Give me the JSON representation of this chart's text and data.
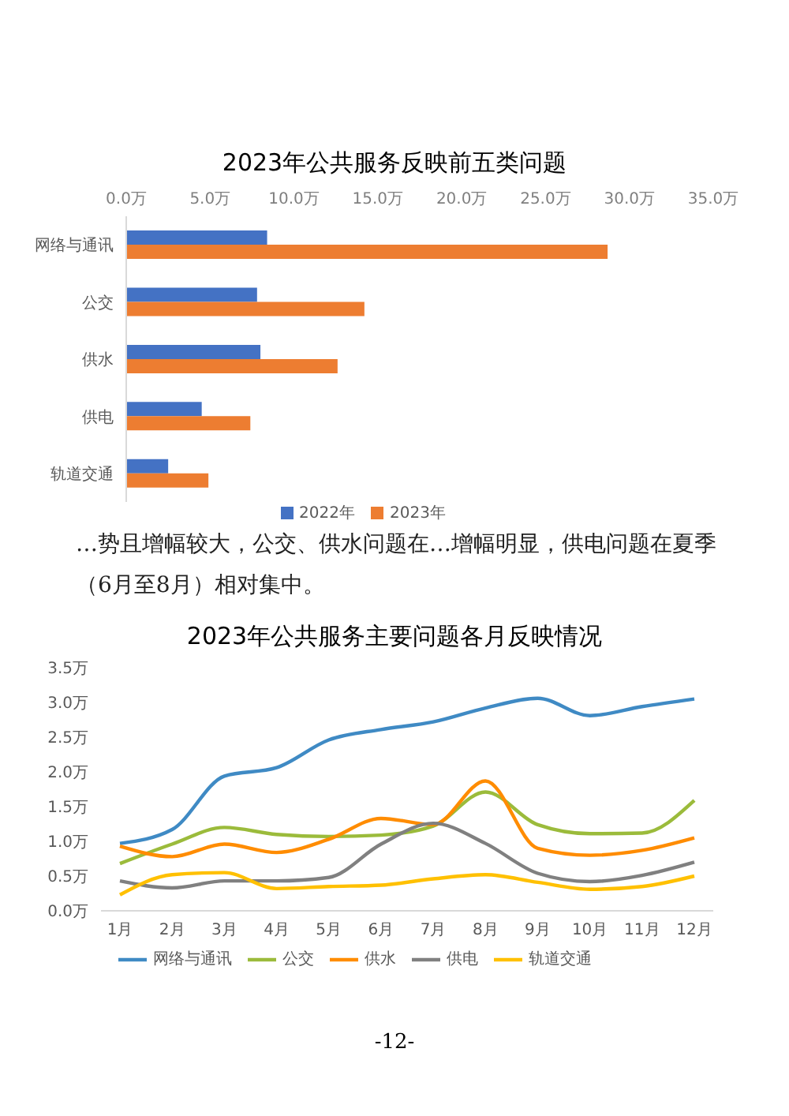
{
  "chart_data": [
    {
      "type": "bar",
      "orientation": "horizontal",
      "title": "2023年公共服务反映前五类问题",
      "categories": [
        "网络与通讯",
        "公交",
        "供水",
        "供电",
        "轨道交通"
      ],
      "series": [
        {
          "name": "2022年",
          "color": "#4472c4",
          "values": [
            8.4,
            7.8,
            8.0,
            4.5,
            2.5
          ]
        },
        {
          "name": "2023年",
          "color": "#ed7d31",
          "values": [
            28.7,
            14.2,
            12.6,
            7.4,
            4.9
          ]
        }
      ],
      "xlim": [
        0,
        35
      ],
      "xticks": [
        {
          "value": 0,
          "label": "0.0万"
        },
        {
          "value": 5,
          "label": "5.0万"
        },
        {
          "value": 10,
          "label": "10.0万"
        },
        {
          "value": 15,
          "label": "15.0万"
        },
        {
          "value": 20,
          "label": "20.0万"
        },
        {
          "value": 25,
          "label": "25.0万"
        },
        {
          "value": 30,
          "label": "30.0万"
        },
        {
          "value": 35,
          "label": "35.0万"
        }
      ],
      "grid": false,
      "legend": "bottom"
    },
    {
      "type": "line",
      "title": "2023年公共服务主要问题各月反映情况",
      "categories": [
        "1月",
        "2月",
        "3月",
        "4月",
        "5月",
        "6月",
        "7月",
        "8月",
        "9月",
        "10月",
        "11月",
        "12月"
      ],
      "series": [
        {
          "name": "网络与通讯",
          "color": "#3f8ac4",
          "values": [
            0.97,
            1.17,
            1.94,
            2.06,
            2.46,
            2.61,
            2.72,
            2.92,
            3.06,
            2.81,
            2.94,
            3.05
          ]
        },
        {
          "name": "公交",
          "color": "#9bbb3b",
          "values": [
            0.68,
            0.96,
            1.2,
            1.1,
            1.07,
            1.09,
            1.22,
            1.71,
            1.24,
            1.11,
            1.12,
            1.59
          ]
        },
        {
          "name": "供水",
          "color": "#ff8c00",
          "values": [
            0.93,
            0.78,
            0.96,
            0.84,
            1.03,
            1.33,
            1.24,
            1.87,
            0.9,
            0.8,
            0.87,
            1.05
          ]
        },
        {
          "name": "供电",
          "color": "#808080",
          "values": [
            0.43,
            0.33,
            0.43,
            0.43,
            0.48,
            0.96,
            1.26,
            0.97,
            0.54,
            0.42,
            0.51,
            0.7
          ]
        },
        {
          "name": "轨道交通",
          "color": "#ffc000",
          "values": [
            0.23,
            0.52,
            0.55,
            0.32,
            0.35,
            0.37,
            0.46,
            0.52,
            0.41,
            0.31,
            0.35,
            0.5
          ]
        }
      ],
      "ylim": [
        0,
        3.5
      ],
      "yticks": [
        {
          "value": 0,
          "label": "0.0万"
        },
        {
          "value": 0.5,
          "label": "0.5万"
        },
        {
          "value": 1,
          "label": "1.0万"
        },
        {
          "value": 1.5,
          "label": "1.5万"
        },
        {
          "value": 2,
          "label": "2.0万"
        },
        {
          "value": 2.5,
          "label": "2.5万"
        },
        {
          "value": 3,
          "label": "3.0万"
        },
        {
          "value": 3.5,
          "label": "3.5万"
        }
      ],
      "grid": false,
      "legend": "bottom",
      "marker": "none",
      "line_style": "solid",
      "annotations": [
        "…势且增幅较大，公交、供水问题在…增幅明显，供电问题在夏季（6月至8月）相对集中。",
        "-12-"
      ]
    }
  ]
}
